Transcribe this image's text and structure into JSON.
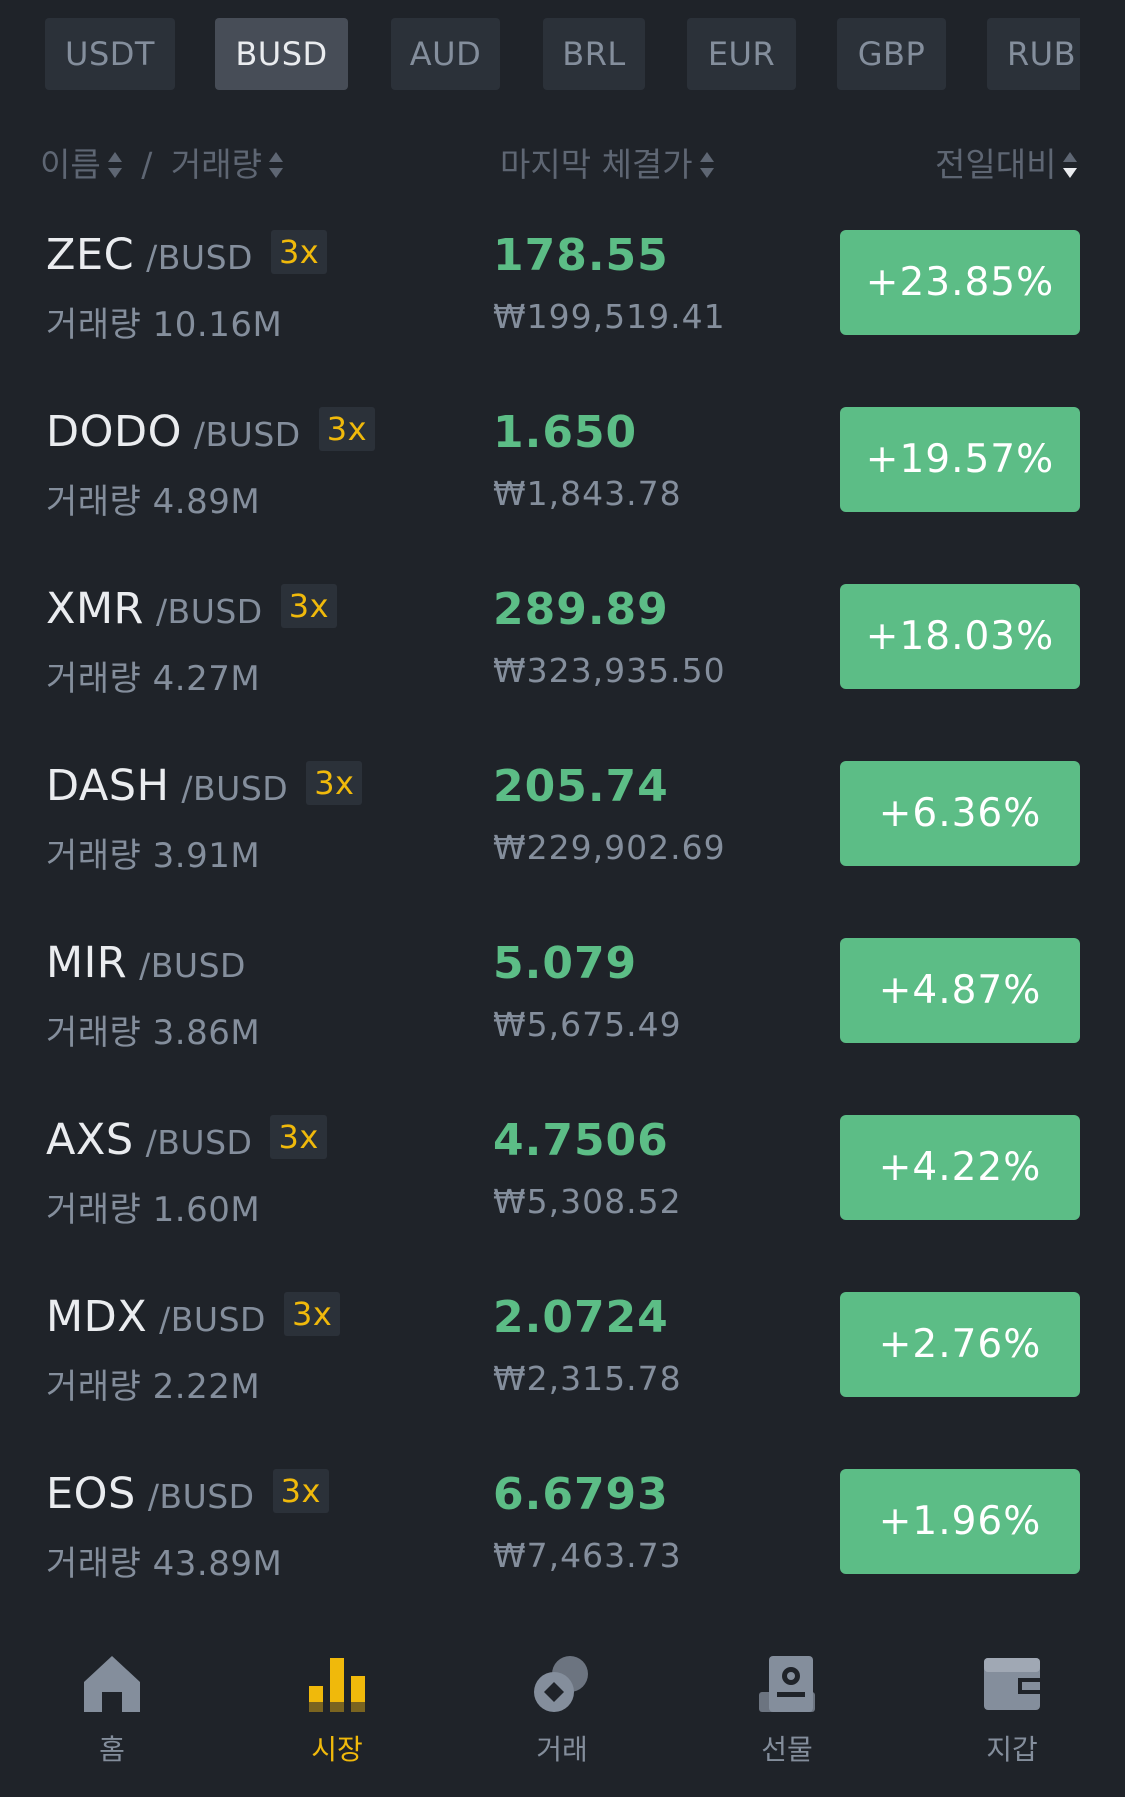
{
  "tabs": [
    {
      "label": "USDT",
      "active": false
    },
    {
      "label": "BUSD",
      "active": true
    },
    {
      "label": "AUD",
      "active": false
    },
    {
      "label": "BRL",
      "active": false
    },
    {
      "label": "EUR",
      "active": false
    },
    {
      "label": "GBP",
      "active": false
    },
    {
      "label": "RUB",
      "active": false
    }
  ],
  "header": {
    "name_label": "이름",
    "separator": "/",
    "volume_label": "거래량",
    "last_price_label": "마지막 체결가",
    "change_label": "전일대비"
  },
  "colors": {
    "background": "#1f2329",
    "positive": "#5cbd86",
    "leverage": "#f0b90b",
    "muted_text": "#848e9c",
    "primary_text": "#eaecef"
  },
  "volume_prefix": "거래량",
  "rows": [
    {
      "base": "ZEC",
      "quote": "/BUSD",
      "leverage": "3x",
      "volume": "10.16M",
      "price": "178.55",
      "krw": "₩199,519.41",
      "change": "+23.85%"
    },
    {
      "base": "DODO",
      "quote": "/BUSD",
      "leverage": "3x",
      "volume": "4.89M",
      "price": "1.650",
      "krw": "₩1,843.78",
      "change": "+19.57%"
    },
    {
      "base": "XMR",
      "quote": "/BUSD",
      "leverage": "3x",
      "volume": "4.27M",
      "price": "289.89",
      "krw": "₩323,935.50",
      "change": "+18.03%"
    },
    {
      "base": "DASH",
      "quote": "/BUSD",
      "leverage": "3x",
      "volume": "3.91M",
      "price": "205.74",
      "krw": "₩229,902.69",
      "change": "+6.36%"
    },
    {
      "base": "MIR",
      "quote": "/BUSD",
      "leverage": "",
      "volume": "3.86M",
      "price": "5.079",
      "krw": "₩5,675.49",
      "change": "+4.87%"
    },
    {
      "base": "AXS",
      "quote": "/BUSD",
      "leverage": "3x",
      "volume": "1.60M",
      "price": "4.7506",
      "krw": "₩5,308.52",
      "change": "+4.22%"
    },
    {
      "base": "MDX",
      "quote": "/BUSD",
      "leverage": "3x",
      "volume": "2.22M",
      "price": "2.0724",
      "krw": "₩2,315.78",
      "change": "+2.76%"
    },
    {
      "base": "EOS",
      "quote": "/BUSD",
      "leverage": "3x",
      "volume": "43.89M",
      "price": "6.6793",
      "krw": "₩7,463.73",
      "change": "+1.96%"
    }
  ],
  "nav": [
    {
      "label": "홈",
      "icon": "home-icon",
      "active": false
    },
    {
      "label": "시장",
      "icon": "markets-icon",
      "active": true
    },
    {
      "label": "거래",
      "icon": "trade-icon",
      "active": false
    },
    {
      "label": "선물",
      "icon": "futures-icon",
      "active": false
    },
    {
      "label": "지갑",
      "icon": "wallet-icon",
      "active": false
    }
  ]
}
